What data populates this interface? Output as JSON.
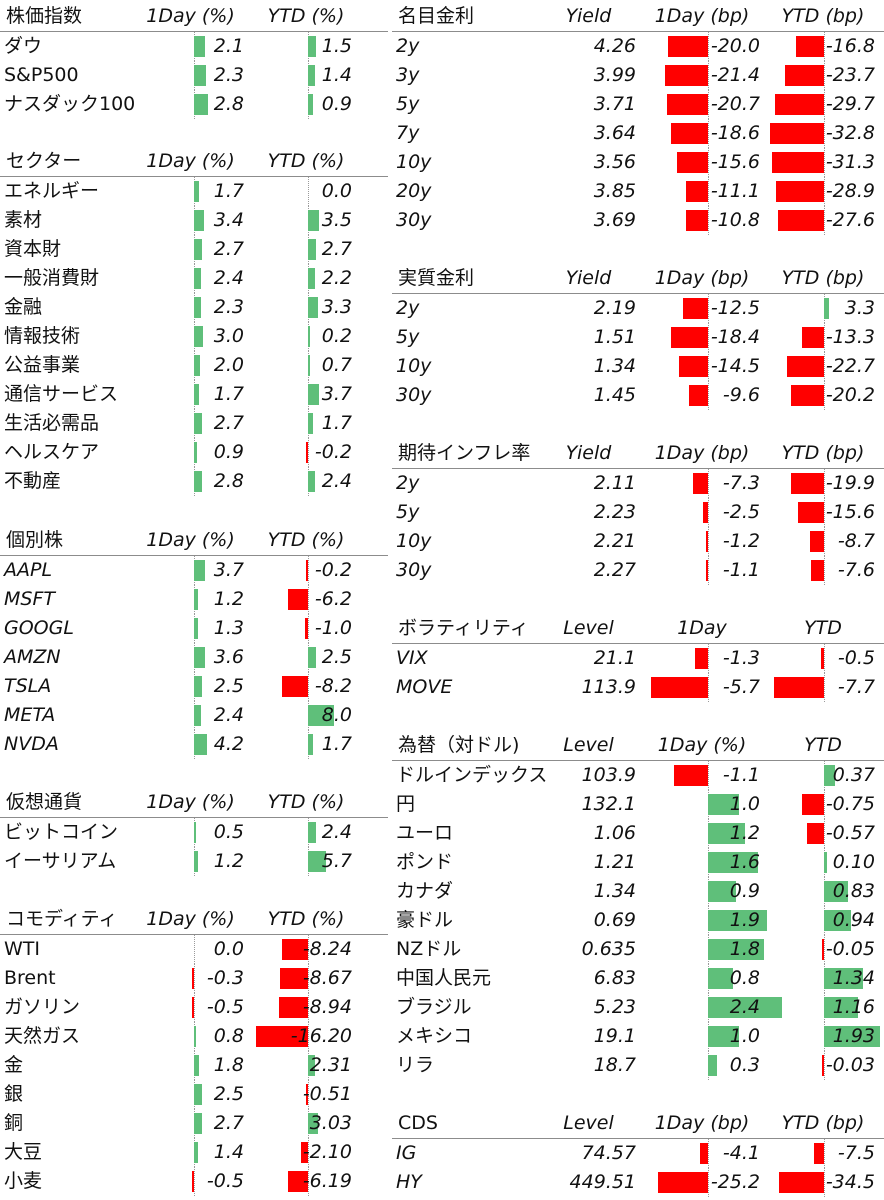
{
  "colors": {
    "positive": "#5fbf7a",
    "negative": "#ff0000"
  },
  "left": [
    {
      "title": "株価指数",
      "headers": [
        "1Day (%)",
        "YTD (%)"
      ],
      "labelItalic": false,
      "rows": [
        [
          "ダウ",
          "2.1",
          "1.5"
        ],
        [
          "S&P500",
          "2.3",
          "1.4"
        ],
        [
          "ナスダック100",
          "2.8",
          "0.9"
        ]
      ]
    },
    {
      "title": "セクター",
      "headers": [
        "1Day (%)",
        "YTD (%)"
      ],
      "labelItalic": false,
      "rows": [
        [
          "エネルギー",
          "1.7",
          "0.0"
        ],
        [
          "素材",
          "3.4",
          "3.5"
        ],
        [
          "資本財",
          "2.7",
          "2.7"
        ],
        [
          "一般消費財",
          "2.4",
          "2.2"
        ],
        [
          "金融",
          "2.3",
          "3.3"
        ],
        [
          "情報技術",
          "3.0",
          "0.2"
        ],
        [
          "公益事業",
          "2.0",
          "0.7"
        ],
        [
          "通信サービス",
          "1.7",
          "3.7"
        ],
        [
          "生活必需品",
          "2.7",
          "1.7"
        ],
        [
          "ヘルスケア",
          "0.9",
          "-0.2"
        ],
        [
          "不動産",
          "2.8",
          "2.4"
        ]
      ]
    },
    {
      "title": "個別株",
      "headers": [
        "1Day (%)",
        "YTD (%)"
      ],
      "labelItalic": true,
      "rows": [
        [
          "AAPL",
          "3.7",
          "-0.2"
        ],
        [
          "MSFT",
          "1.2",
          "-6.2"
        ],
        [
          "GOOGL",
          "1.3",
          "-1.0"
        ],
        [
          "AMZN",
          "3.6",
          "2.5"
        ],
        [
          "TSLA",
          "2.5",
          "-8.2"
        ],
        [
          "META",
          "2.4",
          "8.0"
        ],
        [
          "NVDA",
          "4.2",
          "1.7"
        ]
      ]
    },
    {
      "title": "仮想通貨",
      "headers": [
        "1Day (%)",
        "YTD (%)"
      ],
      "labelItalic": false,
      "rows": [
        [
          "ビットコイン",
          "0.5",
          "2.4"
        ],
        [
          "イーサリアム",
          "1.2",
          "5.7"
        ]
      ]
    },
    {
      "title": "コモディティ",
      "headers": [
        "1Day (%)",
        "YTD (%)"
      ],
      "labelItalic": false,
      "rows": [
        [
          "WTI",
          "0.0",
          "-8.24"
        ],
        [
          "Brent",
          "-0.3",
          "-8.67"
        ],
        [
          "ガソリン",
          "-0.5",
          "-8.94"
        ],
        [
          "天然ガス",
          "0.8",
          "-16.20"
        ],
        [
          "金",
          "1.8",
          "2.31"
        ],
        [
          "銀",
          "2.5",
          "-0.51"
        ],
        [
          "銅",
          "2.7",
          "3.03"
        ],
        [
          "大豆",
          "1.4",
          "-2.10"
        ],
        [
          "小麦",
          "-0.5",
          "-6.19"
        ]
      ]
    }
  ],
  "right": [
    {
      "title": "名目金利",
      "headers": [
        "Yield",
        "1Day (bp)",
        "YTD (bp)"
      ],
      "labelItalic": true,
      "rows": [
        [
          "2y",
          "4.26",
          "-20.0",
          "-16.8"
        ],
        [
          "3y",
          "3.99",
          "-21.4",
          "-23.7"
        ],
        [
          "5y",
          "3.71",
          "-20.7",
          "-29.7"
        ],
        [
          "7y",
          "3.64",
          "-18.6",
          "-32.8"
        ],
        [
          "10y",
          "3.56",
          "-15.6",
          "-31.3"
        ],
        [
          "20y",
          "3.85",
          "-11.1",
          "-28.9"
        ],
        [
          "30y",
          "3.69",
          "-10.8",
          "-27.6"
        ]
      ]
    },
    {
      "title": "実質金利",
      "headers": [
        "Yield",
        "1Day (bp)",
        "YTD (bp)"
      ],
      "labelItalic": true,
      "rows": [
        [
          "2y",
          "2.19",
          "-12.5",
          "3.3"
        ],
        [
          "5y",
          "1.51",
          "-18.4",
          "-13.3"
        ],
        [
          "10y",
          "1.34",
          "-14.5",
          "-22.7"
        ],
        [
          "30y",
          "1.45",
          "-9.6",
          "-20.2"
        ]
      ]
    },
    {
      "title": "期待インフレ率",
      "headers": [
        "Yield",
        "1Day (bp)",
        "YTD (bp)"
      ],
      "labelItalic": true,
      "rows": [
        [
          "2y",
          "2.11",
          "-7.3",
          "-19.9"
        ],
        [
          "5y",
          "2.23",
          "-2.5",
          "-15.6"
        ],
        [
          "10y",
          "2.21",
          "-1.2",
          "-8.7"
        ],
        [
          "30y",
          "2.27",
          "-1.1",
          "-7.6"
        ]
      ]
    },
    {
      "title": "ボラティリティ",
      "headers": [
        "Level",
        "1Day",
        "YTD"
      ],
      "labelItalic": true,
      "rows": [
        [
          "VIX",
          "21.1",
          "-1.3",
          "-0.5"
        ],
        [
          "MOVE",
          "113.9",
          "-5.7",
          "-7.7"
        ]
      ]
    },
    {
      "title": "為替（対ドル)",
      "headers": [
        "Level",
        "1Day (%)",
        "YTD"
      ],
      "labelItalic": false,
      "rows": [
        [
          "ドルインデックス",
          "103.9",
          "-1.1",
          "0.37"
        ],
        [
          "円",
          "132.1",
          "1.0",
          "-0.75"
        ],
        [
          "ユーロ",
          "1.06",
          "1.2",
          "-0.57"
        ],
        [
          "ポンド",
          "1.21",
          "1.6",
          "0.10"
        ],
        [
          "カナダ",
          "1.34",
          "0.9",
          "0.83"
        ],
        [
          "豪ドル",
          "0.69",
          "1.9",
          "0.94"
        ],
        [
          "NZドル",
          "0.635",
          "1.8",
          "-0.05"
        ],
        [
          "中国人民元",
          "6.83",
          "0.8",
          "1.34"
        ],
        [
          "ブラジル",
          "5.23",
          "2.4",
          "1.16"
        ],
        [
          "メキシコ",
          "19.1",
          "1.0",
          "1.93"
        ],
        [
          "リラ",
          "18.7",
          "0.3",
          "-0.03"
        ]
      ]
    },
    {
      "title": "CDS",
      "headers": [
        "Level",
        "1Day (bp)",
        "YTD (bp)"
      ],
      "labelItalic": true,
      "rows": [
        [
          "IG",
          "74.57",
          "-4.1",
          "-7.5"
        ],
        [
          "HY",
          "449.51",
          "-25.2",
          "-34.5"
        ]
      ]
    }
  ]
}
